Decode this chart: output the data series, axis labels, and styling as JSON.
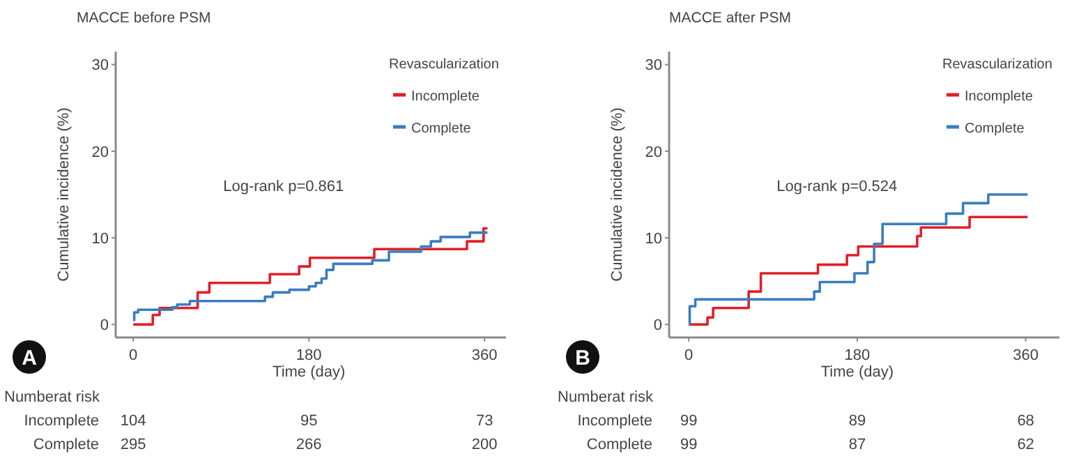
{
  "chart_data": [
    {
      "type": "step",
      "title": "MACCE before PSM",
      "xlabel": "Time (day)",
      "ylabel": "Cumulative incidence (%)",
      "legend_title": "Revascularization",
      "legend": "top right",
      "xlim": [
        -18,
        382
      ],
      "ylim": [
        -1.5,
        31.5
      ],
      "xticks": [
        0,
        180,
        360
      ],
      "yticks": [
        0,
        10,
        20,
        30
      ],
      "series": [
        {
          "name": "Incomplete",
          "color": "#e0202a",
          "x": [
            0,
            20,
            27,
            66,
            78,
            140,
            170,
            181,
            247,
            342,
            359,
            363
          ],
          "values": [
            0,
            1.1,
            1.9,
            3.7,
            4.8,
            5.8,
            6.7,
            7.7,
            8.7,
            9.6,
            11.1,
            11.1
          ]
        },
        {
          "name": "Complete",
          "color": "#3a7dbf",
          "x": [
            0,
            1,
            5,
            40,
            45,
            58,
            135,
            143,
            160,
            180,
            187,
            193,
            198,
            205,
            245,
            262,
            295,
            305,
            315,
            345,
            363
          ],
          "values": [
            0.5,
            1.4,
            1.7,
            2,
            2.3,
            2.7,
            3.2,
            3.7,
            4,
            4.4,
            4.8,
            5.3,
            6.3,
            7,
            7.4,
            8.4,
            9,
            9.6,
            10.1,
            10.6,
            10.6
          ]
        }
      ],
      "annotations": [
        "Log-rank p=0.861",
        "A",
        "Numberat risk",
        "Incomplete",
        "104",
        "95",
        "73",
        "Complete",
        "295",
        "266",
        "200"
      ]
    },
    {
      "type": "step",
      "title": "MACCE after PSM",
      "xlabel": "Time (day)",
      "ylabel": "Cumulative incidence (%)",
      "legend_title": "Revascularization",
      "legend": "top right",
      "xlim": [
        -21,
        396
      ],
      "ylim": [
        -1.5,
        31.5
      ],
      "xticks": [
        0,
        180,
        360
      ],
      "yticks": [
        0,
        10,
        20,
        30
      ],
      "series": [
        {
          "name": "Incomplete",
          "color": "#e0202a",
          "x": [
            0,
            20,
            26,
            64,
            77,
            138,
            169,
            181,
            244,
            248,
            300,
            362
          ],
          "values": [
            0,
            0.8,
            1.9,
            3.8,
            5.9,
            6.9,
            8,
            9,
            10.2,
            11.2,
            12.4,
            12.4
          ]
        },
        {
          "name": "Complete",
          "color": "#3a7dbf",
          "x": [
            0,
            1,
            7,
            134,
            140,
            177,
            191,
            198,
            207,
            275,
            293,
            320,
            362
          ],
          "values": [
            0,
            2.1,
            2.9,
            3.8,
            4.9,
            5.9,
            7.2,
            9.3,
            11.6,
            12.8,
            14,
            15,
            15
          ]
        }
      ],
      "annotations": [
        "Log-rank p=0.524",
        "B",
        "Numberat risk",
        "Incomplete",
        "99",
        "89",
        "68",
        "Complete",
        "99",
        "87",
        "62"
      ]
    }
  ]
}
